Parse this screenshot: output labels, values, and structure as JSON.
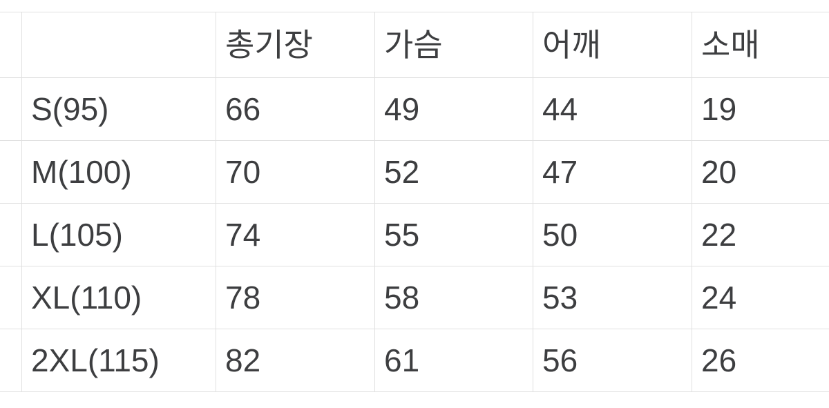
{
  "colors": {
    "background": "#ffffff",
    "text": "#3d3e40",
    "border": "#e0e0e0"
  },
  "chart_data": {
    "type": "table",
    "columns": [
      "",
      "총기장",
      "가슴",
      "어깨",
      "소매"
    ],
    "rows": [
      {
        "label": "S(95)",
        "values": [
          "66",
          "49",
          "44",
          "19"
        ]
      },
      {
        "label": "M(100)",
        "values": [
          "70",
          "52",
          "47",
          "20"
        ]
      },
      {
        "label": "L(105)",
        "values": [
          "74",
          "55",
          "50",
          "22"
        ]
      },
      {
        "label": "XL(110)",
        "values": [
          "78",
          "58",
          "53",
          "24"
        ]
      },
      {
        "label": "2XL(115)",
        "values": [
          "82",
          "61",
          "56",
          "26"
        ]
      }
    ],
    "layout": {
      "grid": "on",
      "left_edge_cropped": true,
      "right_edge_cropped": true,
      "unit_labels_visible": false
    }
  }
}
